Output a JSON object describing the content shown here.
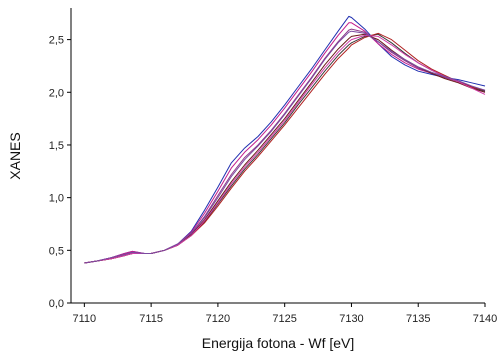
{
  "chart_data": {
    "type": "line",
    "xlabel": "Energija fotona - Wf [eV]",
    "ylabel": "XANES",
    "xlim": [
      7109,
      7140
    ],
    "ylim": [
      0.0,
      2.8
    ],
    "x_ticks": [
      "7110",
      "7115",
      "7120",
      "7125",
      "7130",
      "7135",
      "7140"
    ],
    "y_ticks": [
      "0,0",
      "0,5",
      "1,0",
      "1,5",
      "2,0",
      "2,5"
    ],
    "grid": false,
    "legend": "none",
    "x": [
      7110,
      7111,
      7112,
      7113,
      7113.6,
      7114.5,
      7115,
      7116,
      7117,
      7118,
      7119,
      7120,
      7121,
      7122,
      7123,
      7124,
      7125,
      7126,
      7127,
      7128,
      7129,
      7129.8,
      7130,
      7131,
      7132,
      7133,
      7134,
      7135,
      7136,
      7137,
      7138,
      7139,
      7140
    ],
    "series": [
      {
        "color": "#1f2fb0",
        "values": [
          0.38,
          0.4,
          0.43,
          0.47,
          0.49,
          0.47,
          0.47,
          0.5,
          0.56,
          0.68,
          0.88,
          1.1,
          1.33,
          1.47,
          1.58,
          1.72,
          1.88,
          2.05,
          2.22,
          2.4,
          2.58,
          2.72,
          2.71,
          2.6,
          2.46,
          2.34,
          2.26,
          2.2,
          2.17,
          2.14,
          2.12,
          2.09,
          2.06
        ]
      },
      {
        "color": "#c21b8c",
        "values": [
          0.38,
          0.4,
          0.43,
          0.47,
          0.49,
          0.47,
          0.47,
          0.5,
          0.56,
          0.67,
          0.85,
          1.06,
          1.28,
          1.43,
          1.55,
          1.69,
          1.85,
          2.02,
          2.19,
          2.37,
          2.54,
          2.66,
          2.66,
          2.58,
          2.46,
          2.36,
          2.28,
          2.22,
          2.18,
          2.14,
          2.1,
          2.05,
          2.0
        ]
      },
      {
        "color": "#8e3a8a",
        "values": [
          0.38,
          0.4,
          0.43,
          0.46,
          0.48,
          0.47,
          0.47,
          0.5,
          0.56,
          0.66,
          0.82,
          1.02,
          1.22,
          1.38,
          1.5,
          1.64,
          1.8,
          1.97,
          2.14,
          2.32,
          2.48,
          2.59,
          2.6,
          2.57,
          2.48,
          2.38,
          2.3,
          2.23,
          2.18,
          2.14,
          2.1,
          2.05,
          2.01
        ]
      },
      {
        "color": "#6a1a1a",
        "values": [
          0.38,
          0.4,
          0.42,
          0.45,
          0.47,
          0.47,
          0.47,
          0.5,
          0.55,
          0.65,
          0.79,
          0.97,
          1.15,
          1.31,
          1.45,
          1.6,
          1.75,
          1.92,
          2.09,
          2.26,
          2.41,
          2.51,
          2.53,
          2.55,
          2.5,
          2.4,
          2.31,
          2.24,
          2.18,
          2.13,
          2.09,
          2.04,
          2.0
        ]
      },
      {
        "color": "#3a3a3a",
        "values": [
          0.38,
          0.4,
          0.42,
          0.45,
          0.47,
          0.47,
          0.47,
          0.5,
          0.55,
          0.64,
          0.77,
          0.94,
          1.11,
          1.27,
          1.41,
          1.56,
          1.71,
          1.88,
          2.04,
          2.2,
          2.35,
          2.45,
          2.47,
          2.53,
          2.55,
          2.47,
          2.37,
          2.28,
          2.21,
          2.15,
          2.1,
          2.05,
          2.01
        ]
      },
      {
        "color": "#b02020",
        "values": [
          0.38,
          0.4,
          0.42,
          0.45,
          0.47,
          0.47,
          0.47,
          0.5,
          0.55,
          0.64,
          0.76,
          0.92,
          1.09,
          1.25,
          1.39,
          1.54,
          1.69,
          1.85,
          2.01,
          2.17,
          2.32,
          2.42,
          2.45,
          2.52,
          2.56,
          2.5,
          2.4,
          2.3,
          2.22,
          2.16,
          2.1,
          2.05,
          2.02
        ]
      },
      {
        "color": "#d03aa8",
        "values": [
          0.38,
          0.4,
          0.42,
          0.45,
          0.47,
          0.47,
          0.47,
          0.5,
          0.55,
          0.64,
          0.78,
          0.95,
          1.13,
          1.29,
          1.43,
          1.58,
          1.73,
          1.9,
          2.07,
          2.23,
          2.38,
          2.48,
          2.5,
          2.54,
          2.53,
          2.45,
          2.36,
          2.28,
          2.21,
          2.15,
          2.1,
          2.04,
          1.98
        ]
      },
      {
        "color": "#7a4aa0",
        "values": [
          0.38,
          0.4,
          0.43,
          0.46,
          0.48,
          0.47,
          0.47,
          0.5,
          0.56,
          0.66,
          0.81,
          1.0,
          1.2,
          1.36,
          1.49,
          1.63,
          1.79,
          1.96,
          2.13,
          2.31,
          2.47,
          2.57,
          2.58,
          2.56,
          2.48,
          2.39,
          2.31,
          2.24,
          2.19,
          2.15,
          2.11,
          2.06,
          2.02
        ]
      }
    ]
  }
}
